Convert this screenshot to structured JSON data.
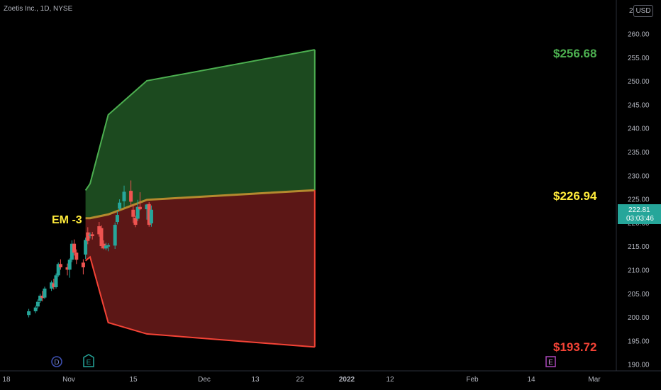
{
  "header": {
    "symbol_title": "Zoetis Inc., 1D, NYSE",
    "currency_badge": "USD",
    "axis_top_clipped": "265.00"
  },
  "price_axis": {
    "ticks": [
      "260.00",
      "255.00",
      "250.00",
      "245.00",
      "240.00",
      "235.00",
      "230.00",
      "225.00",
      "220.00",
      "215.00",
      "210.00",
      "205.00",
      "200.00",
      "195.00",
      "190.00"
    ],
    "current_price": "222.81",
    "countdown": "03:03:46",
    "current_badge_color": "#26a69a"
  },
  "time_axis": {
    "ticks": [
      "18",
      "Nov",
      "15",
      "Dec",
      "13",
      "22",
      "2022",
      "12",
      "Feb",
      "14",
      "Mar"
    ]
  },
  "markers": {
    "dividend": "D",
    "earnings_past": "E",
    "earnings_future": "E"
  },
  "annotations": {
    "em_label": "EM -3",
    "upper_label": "$256.68",
    "mid_label": "$226.94",
    "lower_label": "$193.72"
  },
  "colors": {
    "up": "#26a69a",
    "down": "#ef5350",
    "upper_zone_fill": "#1c4a1f",
    "upper_zone_line": "#4caf50",
    "lower_zone_fill": "#5c1716",
    "lower_zone_line": "#f44336",
    "label_green": "#4caf50",
    "label_yellow": "#ffeb3b",
    "label_red": "#f44336"
  },
  "chart_data": {
    "type": "candlestick",
    "y_range": [
      189,
      265
    ],
    "candles": [
      {
        "d": "2021-10-15",
        "o": 200.5,
        "h": 201.8,
        "l": 200.0,
        "c": 201.3
      },
      {
        "d": "2021-10-18",
        "o": 201.3,
        "h": 202.5,
        "l": 200.9,
        "c": 202.1
      },
      {
        "d": "2021-10-19",
        "o": 202.3,
        "h": 203.8,
        "l": 201.9,
        "c": 203.3
      },
      {
        "d": "2021-10-20",
        "o": 203.5,
        "h": 205.0,
        "l": 203.1,
        "c": 204.6
      },
      {
        "d": "2021-10-21",
        "o": 204.6,
        "h": 205.6,
        "l": 203.4,
        "c": 204.1
      },
      {
        "d": "2021-10-22",
        "o": 204.2,
        "h": 206.5,
        "l": 203.9,
        "c": 206.1
      },
      {
        "d": "2021-10-25",
        "o": 206.1,
        "h": 207.8,
        "l": 205.6,
        "c": 207.4
      },
      {
        "d": "2021-10-26",
        "o": 207.2,
        "h": 208.2,
        "l": 205.9,
        "c": 206.4
      },
      {
        "d": "2021-10-27",
        "o": 206.4,
        "h": 209.3,
        "l": 206.1,
        "c": 208.9
      },
      {
        "d": "2021-10-28",
        "o": 208.9,
        "h": 211.6,
        "l": 208.6,
        "c": 211.3
      },
      {
        "d": "2021-10-29",
        "o": 211.3,
        "h": 212.3,
        "l": 210.1,
        "c": 210.6
      },
      {
        "d": "2021-11-01",
        "o": 210.6,
        "h": 211.4,
        "l": 208.9,
        "c": 210.1
      },
      {
        "d": "2021-11-02",
        "o": 210.1,
        "h": 212.5,
        "l": 208.4,
        "c": 212.2
      },
      {
        "d": "2021-11-03",
        "o": 212.2,
        "h": 216.3,
        "l": 211.7,
        "c": 215.6
      },
      {
        "d": "2021-11-04",
        "o": 215.6,
        "h": 216.5,
        "l": 213.1,
        "c": 213.7
      },
      {
        "d": "2021-11-05",
        "o": 213.7,
        "h": 214.4,
        "l": 211.3,
        "c": 212.2
      },
      {
        "d": "2021-11-08",
        "o": 211.6,
        "h": 212.3,
        "l": 209.1,
        "c": 210.6
      },
      {
        "d": "2021-11-09",
        "o": 213.3,
        "h": 216.9,
        "l": 212.4,
        "c": 216.4
      },
      {
        "d": "2021-11-10",
        "o": 218.0,
        "h": 219.1,
        "l": 215.5,
        "c": 216.2
      },
      {
        "d": "2021-11-11",
        "o": 217.3,
        "h": 218.0,
        "l": 216.7,
        "c": 217.5
      },
      {
        "d": "2021-11-12",
        "o": 217.6,
        "h": 218.1,
        "l": 216.5,
        "c": 217.2
      },
      {
        "d": "2021-11-15",
        "o": 219.3,
        "h": 220.2,
        "l": 217.1,
        "c": 217.6
      },
      {
        "d": "2021-11-16",
        "o": 218.9,
        "h": 219.5,
        "l": 214.6,
        "c": 215.1
      },
      {
        "d": "2021-11-17",
        "o": 215.6,
        "h": 216.3,
        "l": 214.4,
        "c": 214.6
      },
      {
        "d": "2021-11-18",
        "o": 214.6,
        "h": 215.8,
        "l": 214.2,
        "c": 215.2
      },
      {
        "d": "2021-11-19",
        "o": 215.0,
        "h": 215.7,
        "l": 214.0,
        "c": 215.3
      },
      {
        "d": "2021-11-22",
        "o": 215.2,
        "h": 220.1,
        "l": 214.5,
        "c": 219.6
      },
      {
        "d": "2021-11-23",
        "o": 220.2,
        "h": 222.5,
        "l": 219.7,
        "c": 221.7
      },
      {
        "d": "2021-11-24",
        "o": 223.0,
        "h": 225.0,
        "l": 222.6,
        "c": 224.3
      },
      {
        "d": "2021-11-26",
        "o": 224.6,
        "h": 227.9,
        "l": 223.3,
        "c": 226.6
      },
      {
        "d": "2021-11-29",
        "o": 226.8,
        "h": 229.0,
        "l": 223.5,
        "c": 224.5
      },
      {
        "d": "2021-11-30",
        "o": 222.8,
        "h": 223.9,
        "l": 220.0,
        "c": 221.3
      },
      {
        "d": "2021-12-01",
        "o": 221.1,
        "h": 221.5,
        "l": 219.1,
        "c": 219.6
      },
      {
        "d": "2021-12-02",
        "o": 220.9,
        "h": 224.9,
        "l": 220.4,
        "c": 223.4
      },
      {
        "d": "2021-12-03",
        "o": 223.4,
        "h": 226.5,
        "l": 222.7,
        "c": 222.9
      },
      {
        "d": "2021-12-06",
        "o": 222.9,
        "h": 224.0,
        "l": 220.7,
        "c": 223.9
      },
      {
        "d": "2021-12-07",
        "o": 224.0,
        "h": 224.4,
        "l": 219.2,
        "c": 219.6
      },
      {
        "d": "2021-12-08",
        "o": 219.9,
        "h": 223.7,
        "l": 219.2,
        "c": 222.8
      }
    ],
    "expected_move": {
      "upper": [
        {
          "x": "2021-11-09",
          "y": 226.9
        },
        {
          "x": "2021-11-11",
          "y": 228.3
        },
        {
          "x": "2021-11-19",
          "y": 242.9
        },
        {
          "x": "2021-12-06",
          "y": 250.1
        },
        {
          "x": "2022-02-18",
          "y": 256.68
        }
      ],
      "mid": [
        {
          "x": "2021-11-09",
          "y": 221.0
        },
        {
          "x": "2021-11-11",
          "y": 221.0
        },
        {
          "x": "2021-11-19",
          "y": 221.8
        },
        {
          "x": "2021-12-06",
          "y": 224.9
        },
        {
          "x": "2022-02-18",
          "y": 226.94
        }
      ],
      "lower": [
        {
          "x": "2021-11-09",
          "y": 212.0
        },
        {
          "x": "2021-11-11",
          "y": 212.8
        },
        {
          "x": "2021-11-19",
          "y": 198.9
        },
        {
          "x": "2021-12-06",
          "y": 196.5
        },
        {
          "x": "2022-02-18",
          "y": 193.72
        }
      ]
    }
  }
}
